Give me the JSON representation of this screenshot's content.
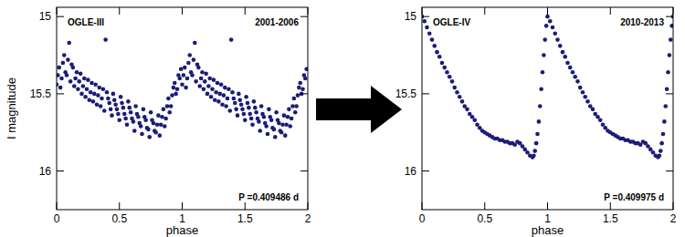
{
  "chart_data": [
    {
      "type": "scatter",
      "annotations": [
        "OGLE-III",
        "2001-2006",
        "P =0.409486 d"
      ],
      "x_label": "phase",
      "y_label": "I magnitude",
      "xlim": [
        0,
        2
      ],
      "xticks": [
        0,
        0.5,
        1,
        1.5,
        2
      ],
      "ylim": [
        16.25,
        14.94
      ],
      "yticks": [
        15,
        15.5,
        16
      ],
      "marker": "circle",
      "series": [
        {
          "color": "#1c1c78",
          "x": [
            0.01,
            0.03,
            0.05,
            0.07,
            0.09,
            0.1,
            0.11,
            0.13,
            0.15,
            0.17,
            0.19,
            0.21,
            0.23,
            0.25,
            0.27,
            0.29,
            0.31,
            0.33,
            0.35,
            0.37,
            0.39,
            0.41,
            0.43,
            0.45,
            0.47,
            0.49,
            0.51,
            0.53,
            0.55,
            0.57,
            0.59,
            0.61,
            0.63,
            0.65,
            0.67,
            0.69,
            0.71,
            0.73,
            0.75,
            0.77,
            0.79,
            0.81,
            0.83,
            0.85,
            0.87,
            0.89,
            0.91,
            0.93,
            0.95,
            0.97,
            0.99,
            1.01,
            1.03,
            1.05,
            1.07,
            1.09,
            1.1,
            1.11,
            1.13,
            1.15,
            1.17,
            1.19,
            1.21,
            1.23,
            1.25,
            1.27,
            1.29,
            1.31,
            1.33,
            1.35,
            1.37,
            1.39,
            1.41,
            1.43,
            1.45,
            1.47,
            1.49,
            1.51,
            1.53,
            1.55,
            1.57,
            1.59,
            1.61,
            1.63,
            1.65,
            1.67,
            1.69,
            1.71,
            1.73,
            1.75,
            1.77,
            1.79,
            1.81,
            1.83,
            1.85,
            1.87,
            1.89,
            1.91,
            1.93,
            1.95,
            1.97,
            1.99,
            0.0,
            0.02,
            0.04,
            0.06,
            0.08,
            0.12,
            0.14,
            0.16,
            0.18,
            0.2,
            0.22,
            0.24,
            0.26,
            0.28,
            0.3,
            0.32,
            0.34,
            0.36,
            0.38,
            0.4,
            0.42,
            0.44,
            0.46,
            0.48,
            0.5,
            0.52,
            0.54,
            0.56,
            0.58,
            0.6,
            0.62,
            0.64,
            0.66,
            0.68,
            0.7,
            0.72,
            0.74,
            0.76,
            0.78,
            0.8,
            0.82,
            0.84,
            0.86,
            0.88,
            0.9,
            0.92,
            0.94,
            0.96,
            0.98,
            1.0,
            1.02,
            1.04,
            1.06,
            1.08,
            1.12,
            1.14,
            1.16,
            1.18,
            1.2,
            1.22,
            1.24,
            1.26,
            1.28,
            1.3,
            1.32,
            1.34,
            1.36,
            1.38,
            1.4,
            1.42,
            1.44,
            1.46,
            1.48,
            1.5,
            1.52,
            1.54,
            1.56,
            1.58,
            1.6,
            1.62,
            1.64,
            1.66,
            1.68,
            1.7,
            1.72,
            1.74,
            1.76,
            1.78,
            1.8,
            1.82,
            1.84,
            1.86,
            1.88,
            1.9,
            1.92,
            1.94,
            1.96,
            1.98
          ],
          "values": [
            15.38,
            15.46,
            15.3,
            15.36,
            15.28,
            15.17,
            15.42,
            15.33,
            15.4,
            15.47,
            15.37,
            15.45,
            15.52,
            15.41,
            15.49,
            15.55,
            15.44,
            15.51,
            15.58,
            15.47,
            15.15,
            15.53,
            15.6,
            15.5,
            15.57,
            15.63,
            15.52,
            15.59,
            15.66,
            15.55,
            15.62,
            15.68,
            15.58,
            15.65,
            15.71,
            15.6,
            15.67,
            15.73,
            15.62,
            15.69,
            15.75,
            15.64,
            15.7,
            15.6,
            15.66,
            15.53,
            15.58,
            15.46,
            15.5,
            15.38,
            15.34,
            15.38,
            15.46,
            15.3,
            15.36,
            15.28,
            15.17,
            15.42,
            15.33,
            15.4,
            15.47,
            15.37,
            15.45,
            15.52,
            15.41,
            15.49,
            15.55,
            15.44,
            15.51,
            15.58,
            15.47,
            15.15,
            15.53,
            15.6,
            15.5,
            15.57,
            15.63,
            15.52,
            15.59,
            15.66,
            15.55,
            15.62,
            15.68,
            15.58,
            15.65,
            15.71,
            15.6,
            15.67,
            15.73,
            15.62,
            15.69,
            15.75,
            15.64,
            15.7,
            15.6,
            15.66,
            15.53,
            15.58,
            15.46,
            15.5,
            15.38,
            15.34,
            15.44,
            15.33,
            15.4,
            15.25,
            15.38,
            15.31,
            15.45,
            15.36,
            15.42,
            15.5,
            15.4,
            15.47,
            15.54,
            15.43,
            15.5,
            15.57,
            15.46,
            15.53,
            15.61,
            15.49,
            15.56,
            15.64,
            15.54,
            15.6,
            15.67,
            15.56,
            15.63,
            15.7,
            15.59,
            15.66,
            15.74,
            15.63,
            15.69,
            15.76,
            15.65,
            15.72,
            15.78,
            15.67,
            15.74,
            15.7,
            15.77,
            15.65,
            15.71,
            15.58,
            15.62,
            15.51,
            15.43,
            15.47,
            15.4,
            15.44,
            15.33,
            15.4,
            15.25,
            15.38,
            15.31,
            15.45,
            15.36,
            15.42,
            15.5,
            15.4,
            15.47,
            15.54,
            15.43,
            15.5,
            15.57,
            15.46,
            15.53,
            15.61,
            15.49,
            15.56,
            15.64,
            15.54,
            15.6,
            15.67,
            15.56,
            15.63,
            15.7,
            15.59,
            15.66,
            15.74,
            15.63,
            15.69,
            15.76,
            15.65,
            15.72,
            15.78,
            15.67,
            15.74,
            15.7,
            15.77,
            15.65,
            15.71,
            15.58,
            15.62,
            15.51,
            15.43,
            15.47,
            15.4
          ]
        }
      ]
    },
    {
      "type": "scatter",
      "annotations": [
        "OGLE-IV",
        "2010-2013",
        "P =0.409975 d"
      ],
      "x_label": "phase",
      "xlim": [
        0,
        2
      ],
      "xticks": [
        0,
        0.5,
        1,
        1.5,
        2
      ],
      "ylim": [
        16.25,
        14.94
      ],
      "yticks": [
        15,
        15.5,
        16
      ],
      "marker": "circle",
      "series": [
        {
          "color": "#1c1c78",
          "x": [
            0.0,
            0.02,
            0.04,
            0.06,
            0.08,
            0.1,
            0.12,
            0.14,
            0.16,
            0.18,
            0.2,
            0.22,
            0.24,
            0.26,
            0.28,
            0.3,
            0.32,
            0.34,
            0.36,
            0.38,
            0.4,
            0.42,
            0.44,
            0.46,
            0.48,
            0.5,
            0.52,
            0.54,
            0.56,
            0.58,
            0.6,
            0.62,
            0.64,
            0.66,
            0.68,
            0.7,
            0.72,
            0.74,
            0.76,
            0.78,
            0.8,
            0.82,
            0.84,
            0.86,
            0.88,
            0.89,
            0.9,
            0.91,
            0.92,
            0.93,
            0.94,
            0.95,
            0.96,
            0.97,
            0.98,
            0.99,
            1.0,
            1.02,
            1.04,
            1.06,
            1.08,
            1.1,
            1.12,
            1.14,
            1.16,
            1.18,
            1.2,
            1.22,
            1.24,
            1.26,
            1.28,
            1.3,
            1.32,
            1.34,
            1.36,
            1.38,
            1.4,
            1.42,
            1.44,
            1.46,
            1.48,
            1.5,
            1.52,
            1.54,
            1.56,
            1.58,
            1.6,
            1.62,
            1.64,
            1.66,
            1.68,
            1.7,
            1.72,
            1.74,
            1.76,
            1.78,
            1.8,
            1.82,
            1.84,
            1.86,
            1.88,
            1.89,
            1.9,
            1.91,
            1.92,
            1.93,
            1.94,
            1.95,
            1.96,
            1.97,
            1.98,
            1.99,
            2.0
          ],
          "values": [
            15.0,
            15.03,
            15.07,
            15.11,
            15.15,
            15.19,
            15.23,
            15.26,
            15.3,
            15.33,
            15.36,
            15.39,
            15.42,
            15.46,
            15.49,
            15.52,
            15.55,
            15.58,
            15.6,
            15.63,
            15.65,
            15.67,
            15.7,
            15.72,
            15.74,
            15.75,
            15.76,
            15.77,
            15.78,
            15.79,
            15.79,
            15.8,
            15.8,
            15.81,
            15.81,
            15.82,
            15.82,
            15.83,
            15.81,
            15.82,
            15.84,
            15.86,
            15.88,
            15.9,
            15.91,
            15.9,
            15.87,
            15.82,
            15.76,
            15.68,
            15.58,
            15.47,
            15.36,
            15.25,
            15.15,
            15.06,
            15.0,
            15.03,
            15.07,
            15.11,
            15.15,
            15.19,
            15.23,
            15.26,
            15.3,
            15.33,
            15.36,
            15.39,
            15.42,
            15.46,
            15.49,
            15.52,
            15.55,
            15.58,
            15.6,
            15.63,
            15.65,
            15.67,
            15.7,
            15.72,
            15.74,
            15.75,
            15.76,
            15.77,
            15.78,
            15.79,
            15.79,
            15.8,
            15.8,
            15.81,
            15.81,
            15.82,
            15.82,
            15.83,
            15.81,
            15.82,
            15.84,
            15.86,
            15.88,
            15.9,
            15.91,
            15.9,
            15.87,
            15.82,
            15.76,
            15.68,
            15.58,
            15.47,
            15.36,
            15.25,
            15.15,
            15.06,
            15.0
          ]
        }
      ]
    }
  ]
}
